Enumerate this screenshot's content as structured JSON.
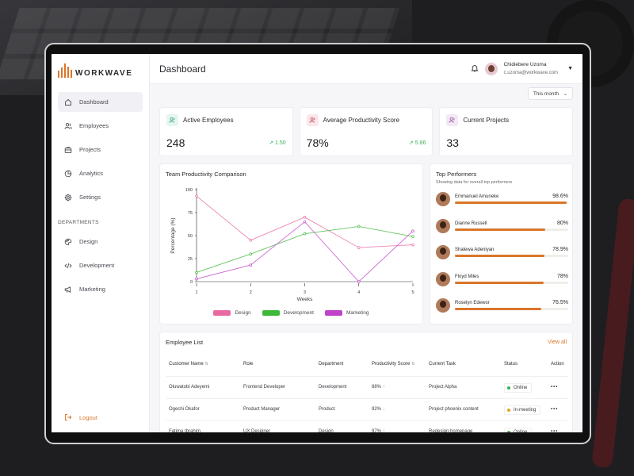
{
  "app": {
    "logo_text": "WORKWAVE"
  },
  "sidebar": {
    "items": [
      {
        "label": "Dashboard",
        "icon": "home-icon",
        "active": true
      },
      {
        "label": "Employees",
        "icon": "users-icon"
      },
      {
        "label": "Projects",
        "icon": "briefcase-icon"
      },
      {
        "label": "Analytics",
        "icon": "pie-chart-icon"
      },
      {
        "label": "Settings",
        "icon": "gear-icon"
      }
    ],
    "departments_title": "DEPARTMENTS",
    "departments": [
      {
        "label": "Design",
        "icon": "palette-icon"
      },
      {
        "label": "Development",
        "icon": "code-icon"
      },
      {
        "label": "Marketing",
        "icon": "megaphone-icon"
      }
    ],
    "logout_label": "Logout"
  },
  "header": {
    "title": "Dashboard",
    "user_name": "Chidiebere Uzoma",
    "user_email": "c.uzoma@workwave.com"
  },
  "filter": {
    "selected": "This month"
  },
  "stats": [
    {
      "label": "Active Employees",
      "value": "248",
      "change": "1.50"
    },
    {
      "label": "Average Productivity Score",
      "value": "78%",
      "change": "5.86"
    },
    {
      "label": "Current Projects",
      "value": "33",
      "change": ""
    }
  ],
  "chart_data": {
    "type": "line",
    "title": "Team Productivity Comparison",
    "xlabel": "Weeks",
    "ylabel": "Percentage (%)",
    "x": [
      1,
      2,
      3,
      4,
      5
    ],
    "yticks": [
      0,
      25,
      50,
      75,
      100
    ],
    "ylim": [
      0,
      100
    ],
    "xlim": [
      1,
      5
    ],
    "series": [
      {
        "name": "Design",
        "color": "#e86aa3",
        "values": [
          93,
          45,
          70,
          37,
          40
        ]
      },
      {
        "name": "Development",
        "color": "#3fb83a",
        "values": [
          10,
          30,
          52,
          60,
          49
        ]
      },
      {
        "name": "Marketing",
        "color": "#c042c8",
        "values": [
          3,
          18,
          65,
          0,
          55
        ]
      }
    ],
    "legend": "bottom"
  },
  "top_performers": {
    "title": "Top Performers",
    "subtitle": "Showing data for overall top performers",
    "people": [
      {
        "name": "Emmanuel Amuneke",
        "score": "98.6%",
        "pct": 98.6
      },
      {
        "name": "Dianne Russell",
        "score": "80%",
        "pct": 80
      },
      {
        "name": "Shalewa Adeniyan",
        "score": "78.9%",
        "pct": 78.9
      },
      {
        "name": "Floyd Miles",
        "score": "78%",
        "pct": 78
      },
      {
        "name": "Roselyn Edewor",
        "score": "76.5%",
        "pct": 76.5
      }
    ]
  },
  "employee_list": {
    "title": "Employee List",
    "view_all": "View all",
    "columns": [
      "Customer Name",
      "Role",
      "Department",
      "Productivity Score",
      "Current Task",
      "Status",
      "Action"
    ],
    "rows": [
      {
        "name": "Oluwatobi Adeyemi",
        "role": "Frontend Developer",
        "department": "Development",
        "score": "88%",
        "trend": "↑",
        "task": "Project Alpha",
        "status": "Online",
        "status_color": "#3cb05a",
        "action": "•••"
      },
      {
        "name": "Ogechi Okafor",
        "role": "Product Manager",
        "department": "Product",
        "score": "92%",
        "trend": "↓",
        "task": "Project phoenix content",
        "status": "In-meeting",
        "status_color": "#e3a21a",
        "action": "•••"
      },
      {
        "name": "Fatima Ibrahim",
        "role": "UX Designer",
        "department": "Design",
        "score": "97%",
        "trend": "↑",
        "task": "Redesign homepage",
        "status": "Online",
        "status_color": "#3cb05a",
        "action": "•••"
      }
    ]
  },
  "colors": {
    "accent": "#d9762b",
    "positive": "#3cb05a"
  }
}
